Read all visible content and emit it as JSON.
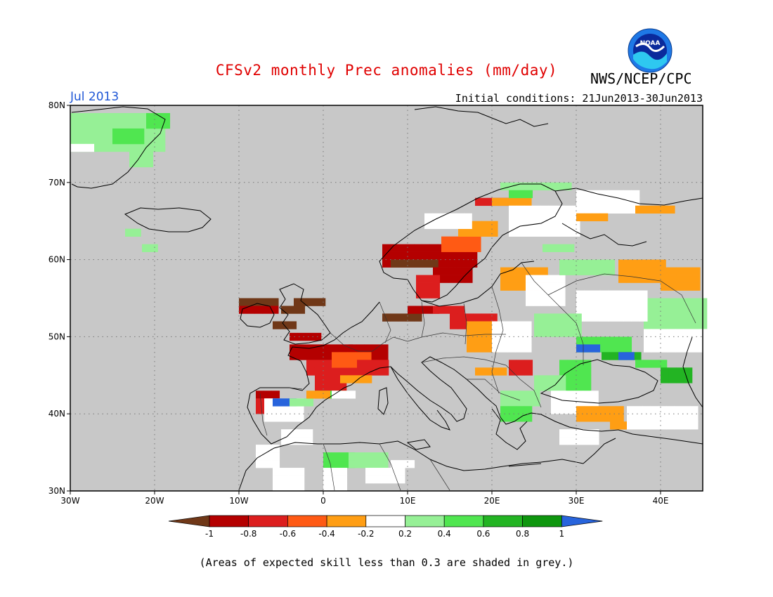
{
  "header": {
    "title": "CFSv2 monthly Prec anomalies (mm/day)",
    "agency": "NWS/NCEP/CPC",
    "logo_text": "NOAA",
    "month": "Jul 2013",
    "initial_conditions": "Initial conditions: 21Jun2013-30Jun2013"
  },
  "map": {
    "lon_range": [
      -30,
      45
    ],
    "lat_range": [
      30,
      80
    ],
    "lat_labels": [
      "30N",
      "40N",
      "50N",
      "60N",
      "70N",
      "80N"
    ],
    "lon_labels": [
      "30W",
      "20W",
      "10W",
      "0",
      "10E",
      "20E",
      "30E",
      "40E"
    ],
    "grid": "dotted",
    "background": "#c8c8c8"
  },
  "legend": {
    "tick_labels": [
      "-1",
      "-0.8",
      "-0.6",
      "-0.4",
      "-0.2",
      "0.2",
      "0.4",
      "0.6",
      "0.8",
      "1"
    ],
    "colors": [
      "#703818",
      "#b40000",
      "#dc1e1e",
      "#ff5a14",
      "#ff9e14",
      "#ffffff",
      "#96f096",
      "#50e650",
      "#23b423",
      "#0e960e",
      "#2864dc"
    ]
  },
  "footer": {
    "note": "(Areas of expected skill less than 0.3 are shaded in grey.)"
  }
}
